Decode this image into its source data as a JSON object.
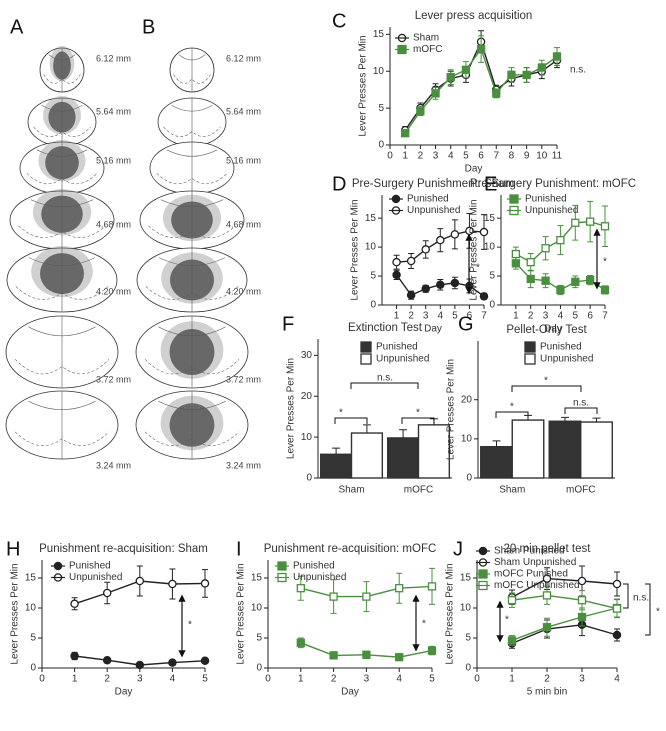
{
  "atlas": [
    {
      "panel": "A",
      "levels": [
        "6.12 mm",
        "5.64 mm",
        "5.16 mm",
        "4.68 mm",
        "4.20 mm",
        "3.72 mm",
        "3.24 mm"
      ]
    },
    {
      "panel": "B",
      "levels": [
        "6.12 mm",
        "5.64 mm",
        "5.16 mm",
        "4.68 mm",
        "4.20 mm",
        "3.72 mm",
        "3.24 mm"
      ]
    }
  ],
  "chart_data": [
    {
      "type": "line",
      "panel": "C",
      "title": "Lever press acquisition",
      "xlabel": "Day",
      "ylabel": "Lever Presses Per Min",
      "x": [
        1,
        2,
        3,
        4,
        5,
        6,
        7,
        8,
        9,
        10,
        11
      ],
      "xlim": [
        0,
        11
      ],
      "xticks": [
        0,
        1,
        2,
        3,
        4,
        5,
        6,
        7,
        8,
        9,
        10,
        11
      ],
      "ylim": [
        0,
        16
      ],
      "yticks": [
        0,
        5,
        10,
        15
      ],
      "annotations": [
        "n.s."
      ],
      "series": [
        {
          "name": "Sham",
          "color": "#222222",
          "marker": "circle",
          "filled": false,
          "values": [
            2,
            5,
            7.5,
            9,
            9.5,
            14,
            7.5,
            9,
            9.5,
            10,
            11.5
          ],
          "errors": [
            0.5,
            0.7,
            0.8,
            1,
            1,
            1.5,
            0.6,
            1,
            1,
            1,
            1
          ]
        },
        {
          "name": "mOFC",
          "color": "#4a8f3f",
          "marker": "square",
          "filled": true,
          "values": [
            1.6,
            4.6,
            7,
            9.2,
            10.2,
            13,
            7,
            9.5,
            9.5,
            10.5,
            12
          ],
          "errors": [
            0.4,
            0.6,
            0.8,
            1,
            1.1,
            1.8,
            0.6,
            1,
            1,
            1,
            1.2
          ]
        }
      ]
    },
    {
      "type": "line",
      "panel": "D",
      "title": "Pre-Surgery Punishment: Sham",
      "xlabel": "Day",
      "ylabel": "Lever Presses Per Min",
      "x": [
        1,
        2,
        3,
        4,
        5,
        6,
        7
      ],
      "xlim": [
        0,
        7
      ],
      "xticks": [
        1,
        2,
        3,
        4,
        5,
        6,
        7
      ],
      "ylim": [
        0,
        19
      ],
      "yticks": [
        0,
        5,
        10,
        15
      ],
      "annotations": [
        "*"
      ],
      "series": [
        {
          "name": "Punished",
          "color": "#222222",
          "marker": "circle",
          "filled": true,
          "values": [
            5.2,
            1.7,
            2.8,
            3.5,
            3.8,
            3.3,
            1.5
          ],
          "errors": [
            0.8,
            0.7,
            0.6,
            0.9,
            1,
            1.2,
            0.5
          ]
        },
        {
          "name": "Unpunished",
          "color": "#222222",
          "marker": "circle",
          "filled": false,
          "values": [
            7.4,
            7.6,
            9.6,
            11.2,
            12.2,
            12.8,
            12.6
          ],
          "errors": [
            1.2,
            1.3,
            1.5,
            2,
            2.5,
            3,
            3
          ]
        }
      ]
    },
    {
      "type": "line",
      "panel": "E",
      "title": "Pre-Surgery Punishment: mOFC",
      "xlabel": "Day",
      "ylabel": "Lever Presses Per Min",
      "x": [
        1,
        2,
        3,
        4,
        5,
        6,
        7
      ],
      "xlim": [
        0,
        7
      ],
      "xticks": [
        1,
        2,
        3,
        4,
        5,
        6,
        7
      ],
      "ylim": [
        0,
        19
      ],
      "yticks": [
        0,
        5,
        10,
        15
      ],
      "annotations": [
        "*"
      ],
      "series": [
        {
          "name": "Punished",
          "color": "#4a8f3f",
          "marker": "square",
          "filled": true,
          "values": [
            7.2,
            4.5,
            4.2,
            2.6,
            4.0,
            4.3,
            2.6
          ],
          "errors": [
            1,
            1.5,
            1.2,
            0.8,
            1,
            0.8,
            0.7
          ]
        },
        {
          "name": "Unpunished",
          "color": "#4a8f3f",
          "marker": "square",
          "filled": false,
          "values": [
            8.8,
            7.4,
            9.8,
            11.2,
            14.2,
            14.4,
            13.6
          ],
          "errors": [
            1.2,
            1.5,
            2,
            2.5,
            3,
            3.5,
            3.5
          ]
        }
      ]
    },
    {
      "type": "bar",
      "panel": "F",
      "title": "Extinction Test",
      "ylabel": "Lever Presses Per Min",
      "categories": [
        "Sham",
        "mOFC"
      ],
      "ylim": [
        0,
        34
      ],
      "yticks": [
        0,
        10,
        20,
        30
      ],
      "annotations": [
        "*",
        "n.s.",
        "*"
      ],
      "series": [
        {
          "name": "Punished",
          "color": "#333333",
          "filled": true,
          "values": [
            5.8,
            9.8
          ],
          "errors": [
            1.5,
            2
          ]
        },
        {
          "name": "Unpunished",
          "color": "#333333",
          "filled": false,
          "values": [
            11,
            13
          ],
          "errors": [
            2,
            1.5
          ]
        }
      ]
    },
    {
      "type": "bar",
      "panel": "G",
      "title": "Pellet-Only Test",
      "ylabel": "Lever Presses Per Min",
      "categories": [
        "Sham",
        "mOFC"
      ],
      "ylim": [
        0,
        35
      ],
      "yticks": [
        0,
        10,
        20
      ],
      "annotations": [
        "*",
        "*",
        "n.s."
      ],
      "series": [
        {
          "name": "Punished",
          "color": "#333333",
          "filled": true,
          "values": [
            8,
            14.5
          ],
          "errors": [
            1.5,
            1
          ]
        },
        {
          "name": "Unpunished",
          "color": "#333333",
          "filled": false,
          "values": [
            14.8,
            14.3
          ],
          "errors": [
            1.2,
            1
          ]
        }
      ]
    },
    {
      "type": "line",
      "panel": "H",
      "title": "Punishment re-acquisition: Sham",
      "xlabel": "Day",
      "ylabel": "Lever Presses Per Min",
      "x": [
        1,
        2,
        3,
        4,
        5
      ],
      "xlim": [
        0,
        5
      ],
      "xticks": [
        0,
        1,
        2,
        3,
        4,
        5
      ],
      "ylim": [
        0,
        18
      ],
      "yticks": [
        0,
        5,
        10,
        15
      ],
      "annotations": [
        "*"
      ],
      "series": [
        {
          "name": "Punished",
          "color": "#222222",
          "marker": "circle",
          "filled": true,
          "values": [
            2,
            1.3,
            0.5,
            0.9,
            1.2
          ],
          "errors": [
            0.6,
            0.4,
            0.2,
            0.3,
            0.3
          ]
        },
        {
          "name": "Unpunished",
          "color": "#222222",
          "marker": "circle",
          "filled": false,
          "values": [
            10.7,
            12.5,
            14.5,
            14,
            14.1
          ],
          "errors": [
            1,
            1.8,
            2.5,
            2.5,
            2.3
          ]
        }
      ]
    },
    {
      "type": "line",
      "panel": "I",
      "title": "Punishment re-acquisition: mOFC",
      "xlabel": "Day",
      "ylabel": "Lever Presses Per Min",
      "x": [
        1,
        2,
        3,
        4,
        5
      ],
      "xlim": [
        0,
        5
      ],
      "xticks": [
        0,
        1,
        2,
        3,
        4,
        5
      ],
      "ylim": [
        0,
        18
      ],
      "yticks": [
        0,
        5,
        10,
        15
      ],
      "annotations": [
        "*"
      ],
      "series": [
        {
          "name": "Punished",
          "color": "#4a8f3f",
          "marker": "square",
          "filled": true,
          "values": [
            4.2,
            2.1,
            2.2,
            1.8,
            2.9
          ],
          "errors": [
            0.8,
            0.6,
            0.6,
            0.4,
            0.7
          ]
        },
        {
          "name": "Unpunished",
          "color": "#4a8f3f",
          "marker": "square",
          "filled": false,
          "values": [
            13.3,
            11.9,
            11.9,
            13.3,
            13.6
          ],
          "errors": [
            2,
            2.8,
            2.5,
            2.5,
            3
          ]
        }
      ]
    },
    {
      "type": "line",
      "panel": "J",
      "title": "20 min pellet test",
      "xlabel": "5 min bin",
      "ylabel": "Lever Presses Per Min",
      "x": [
        1,
        2,
        3,
        4
      ],
      "xlim": [
        0,
        4
      ],
      "xticks": [
        0,
        1,
        2,
        3,
        4
      ],
      "ylim": [
        0,
        18
      ],
      "yticks": [
        0,
        5,
        10,
        15
      ],
      "annotations": [
        "*",
        "n.s.",
        "*"
      ],
      "series": [
        {
          "name": "Sham Punished",
          "color": "#222222",
          "marker": "circle",
          "filled": true,
          "values": [
            4.1,
            6.5,
            7.2,
            5.5
          ],
          "errors": [
            0.8,
            1.5,
            1.8,
            1
          ]
        },
        {
          "name": "Sham Unpunished",
          "color": "#222222",
          "marker": "circle",
          "filled": false,
          "values": [
            11.8,
            14.9,
            14.5,
            14.0
          ],
          "errors": [
            1.2,
            1.8,
            2.5,
            2
          ]
        },
        {
          "name": "mOFC Punished",
          "color": "#4a8f3f",
          "marker": "square",
          "filled": true,
          "values": [
            4.6,
            6.8,
            8.5,
            10.0
          ],
          "errors": [
            0.8,
            1.5,
            1.5,
            1.5
          ]
        },
        {
          "name": "mOFC Unpunished",
          "color": "#4a8f3f",
          "marker": "square",
          "filled": false,
          "values": [
            11.3,
            12.1,
            11.3,
            9.9
          ],
          "errors": [
            1.2,
            1.5,
            1.6,
            1.5
          ]
        }
      ]
    }
  ]
}
